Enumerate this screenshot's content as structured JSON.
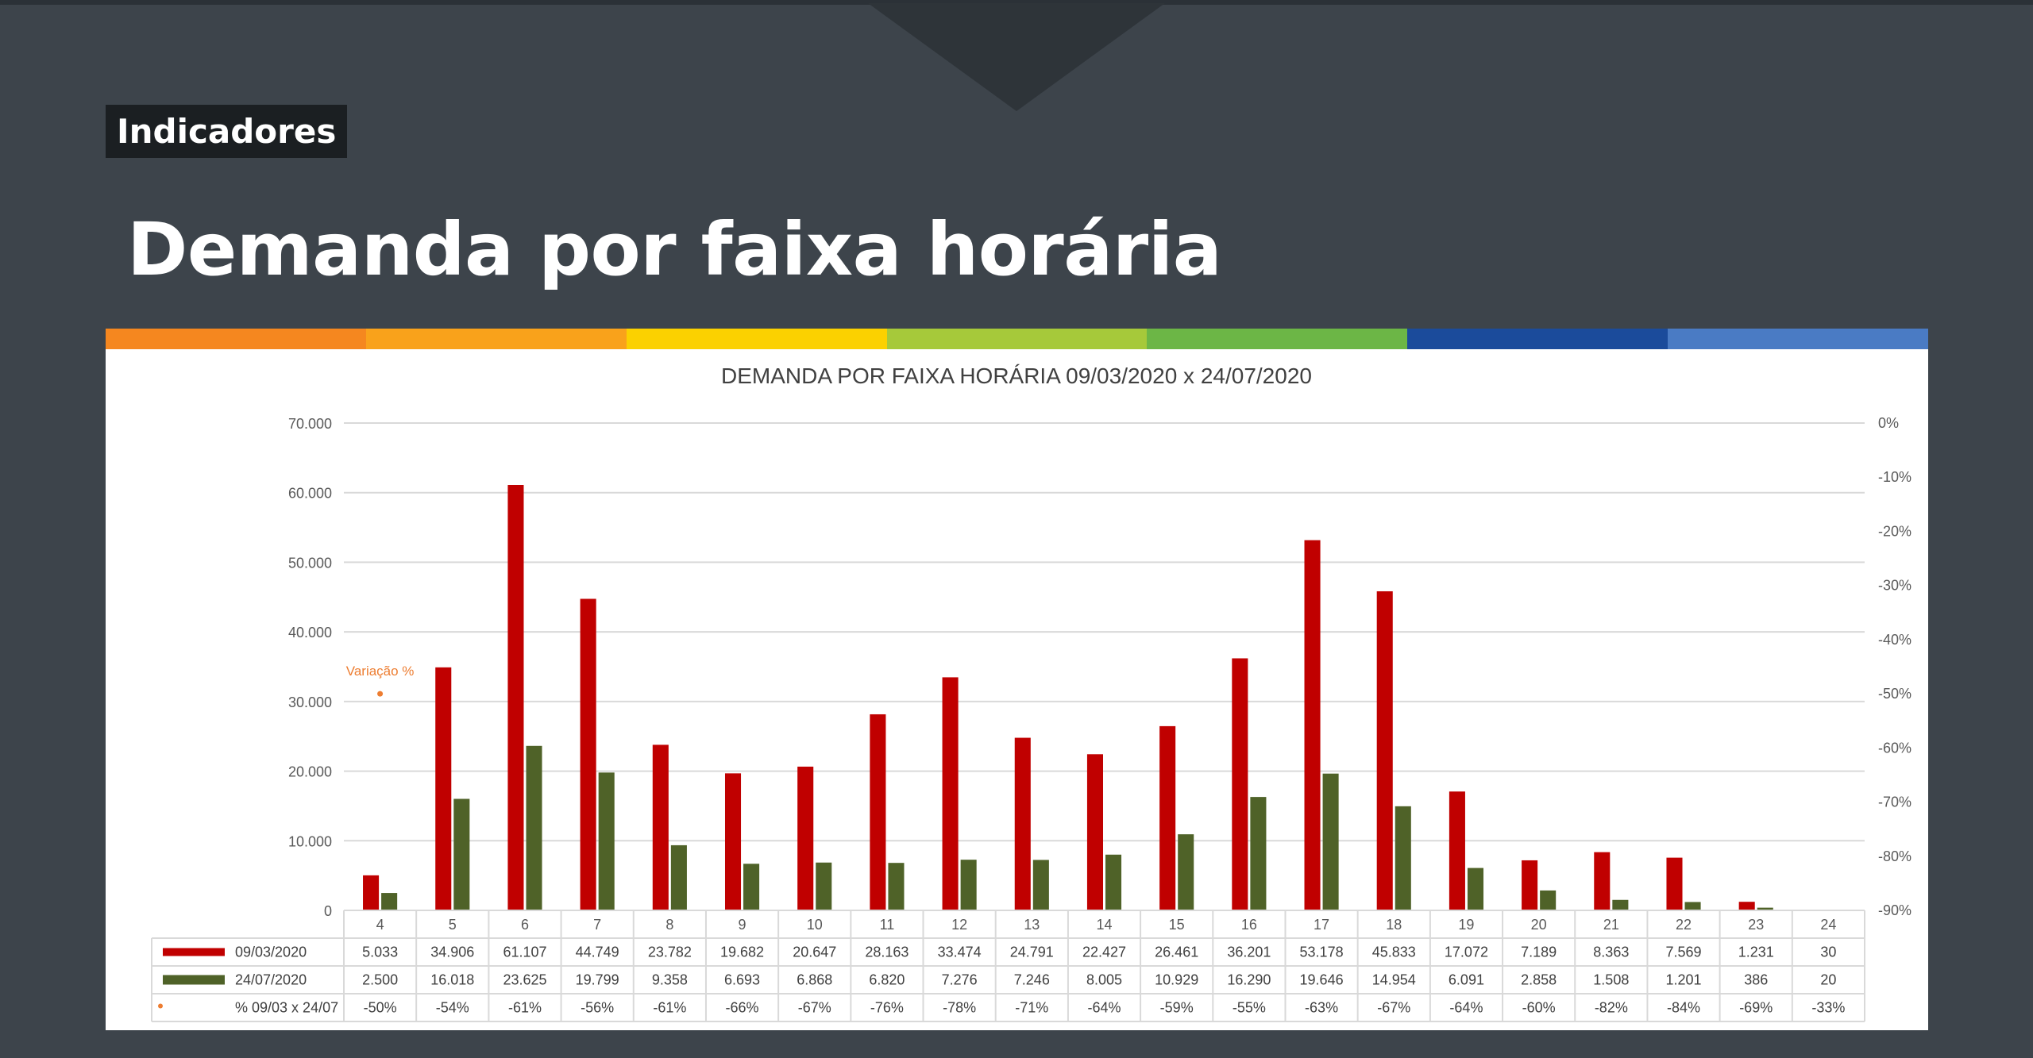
{
  "header": {
    "badge": "Indicadores",
    "title": "Demanda por faixa horária"
  },
  "colors": {
    "background": "#3d444b",
    "stripe": [
      "#f5871f",
      "#f9a21b",
      "#fbd100",
      "#a6c93a",
      "#6cb646",
      "#1b4b9b",
      "#4a7bc4"
    ],
    "series1": "#c00000",
    "series2": "#4f6228",
    "variation": "#ed7d31"
  },
  "chart_data": {
    "type": "bar",
    "title": "DEMANDA  POR FAIXA HORÁRIA 09/03/2020 x 24/07/2020",
    "categories": [
      "4",
      "5",
      "6",
      "7",
      "8",
      "9",
      "10",
      "11",
      "12",
      "13",
      "14",
      "15",
      "16",
      "17",
      "18",
      "19",
      "20",
      "21",
      "22",
      "23",
      "24"
    ],
    "series": [
      {
        "name": "09/03/2020",
        "values": [
          5033,
          34906,
          61107,
          44749,
          23782,
          19682,
          20647,
          28163,
          33474,
          24791,
          22427,
          26461,
          36201,
          53178,
          45833,
          17072,
          7189,
          8363,
          7569,
          1231,
          30
        ],
        "labels": [
          "5.033",
          "34.906",
          "61.107",
          "44.749",
          "23.782",
          "19.682",
          "20.647",
          "28.163",
          "33.474",
          "24.791",
          "22.427",
          "26.461",
          "36.201",
          "53.178",
          "45.833",
          "17.072",
          "7.189",
          "8.363",
          "7.569",
          "1.231",
          "30"
        ]
      },
      {
        "name": "24/07/2020",
        "values": [
          2500,
          16018,
          23625,
          19799,
          9358,
          6693,
          6868,
          6820,
          7276,
          7246,
          8005,
          10929,
          16290,
          19646,
          14954,
          6091,
          2858,
          1508,
          1201,
          386,
          20
        ],
        "labels": [
          "2.500",
          "16.018",
          "23.625",
          "19.799",
          "9.358",
          "6.693",
          "6.868",
          "6.820",
          "7.276",
          "7.246",
          "8.005",
          "10.929",
          "16.290",
          "19.646",
          "14.954",
          "6.091",
          "2.858",
          "1.508",
          "1.201",
          "386",
          "20"
        ]
      }
    ],
    "variation": {
      "name": "% 09/03 x 24/07",
      "annotation": "Variação %",
      "values": [
        -50,
        -54,
        -61,
        -56,
        -61,
        -66,
        -67,
        -76,
        -78,
        -71,
        -64,
        -59,
        -55,
        -63,
        -67,
        -64,
        -60,
        -82,
        -84,
        -69,
        -33
      ],
      "labels": [
        "-50%",
        "-54%",
        "-61%",
        "-56%",
        "-61%",
        "-66%",
        "-67%",
        "-76%",
        "-78%",
        "-71%",
        "-64%",
        "-59%",
        "-55%",
        "-63%",
        "-67%",
        "-64%",
        "-60%",
        "-82%",
        "-84%",
        "-69%",
        "-33%"
      ]
    },
    "ylim": [
      0,
      70000
    ],
    "yticks": [
      "0",
      "10.000",
      "20.000",
      "30.000",
      "40.000",
      "50.000",
      "60.000",
      "70.000"
    ],
    "y2lim": [
      -90,
      0
    ],
    "y2ticks": [
      "0%",
      "-10%",
      "-20%",
      "-30%",
      "-40%",
      "-50%",
      "-60%",
      "-70%",
      "-80%",
      "-90%"
    ],
    "grid": true,
    "legend": "data-table"
  }
}
